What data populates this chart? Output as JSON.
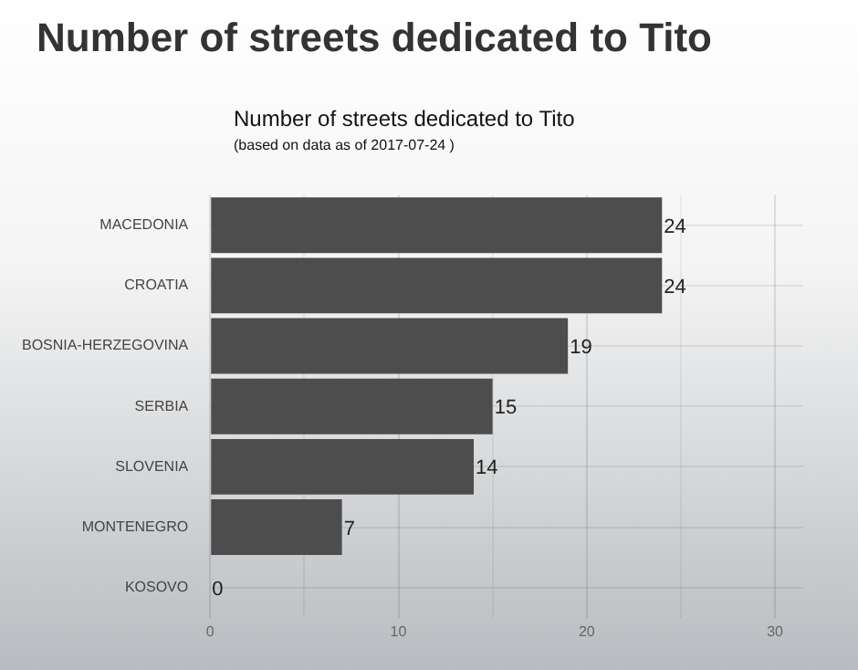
{
  "chart_data": {
    "type": "bar",
    "orientation": "horizontal",
    "title": "Number of streets dedicated to Tito",
    "subtitle": "Number of streets dedicated to Tito",
    "annotations": [
      "(based on data as of 2017-07-24 )"
    ],
    "categories": [
      "MACEDONIA",
      "CROATIA",
      "BOSNIA-HERZEGOVINA",
      "SERBIA",
      "SLOVENIA",
      "MONTENEGRO",
      "KOSOVO"
    ],
    "values": [
      24,
      24,
      19,
      15,
      14,
      7,
      0
    ],
    "color": "#4d4d4d",
    "xlim": [
      0,
      31.5
    ],
    "xticks": [
      0,
      {
        "value": 5,
        "label": null
      },
      10,
      {
        "value": 15,
        "label": null
      },
      20,
      {
        "value": 25,
        "label": null
      },
      30
    ],
    "grid": true,
    "data_labels": true
  }
}
